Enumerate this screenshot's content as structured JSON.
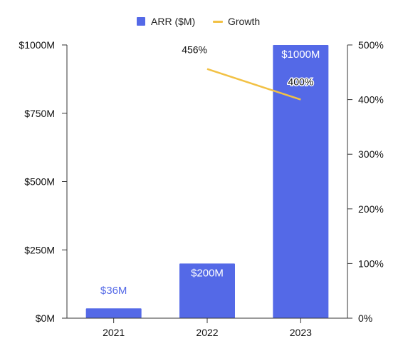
{
  "chart_data": {
    "type": "bar",
    "categories": [
      "2021",
      "2022",
      "2023"
    ],
    "series": [
      {
        "name": "ARR ($M)",
        "type": "bar",
        "axis": "left",
        "color": "#5469E7",
        "values": [
          36,
          200,
          1000
        ],
        "value_labels": [
          "$36M",
          "$200M",
          "$1000M"
        ]
      },
      {
        "name": "Growth",
        "type": "line",
        "axis": "right",
        "color": "#F2C144",
        "values": [
          null,
          456,
          400
        ],
        "value_labels": [
          "",
          "456%",
          "400%"
        ]
      }
    ],
    "y_left": {
      "ylim": [
        0,
        1000
      ],
      "ticks": [
        0,
        250,
        500,
        750,
        1000
      ],
      "tick_labels": [
        "$0M",
        "$250M",
        "$500M",
        "$750M",
        "$1000M"
      ]
    },
    "y_right": {
      "ylim": [
        0,
        500
      ],
      "ticks": [
        0,
        100,
        200,
        300,
        400,
        500
      ],
      "tick_labels": [
        "0%",
        "100%",
        "200%",
        "300%",
        "400%",
        "500%"
      ]
    },
    "legend": {
      "placement": "top",
      "items": [
        {
          "label": "ARR ($M)",
          "shape": "square",
          "color": "#5469E7"
        },
        {
          "label": "Growth",
          "shape": "line",
          "color": "#F2C144"
        }
      ]
    },
    "title": "",
    "xlabel": "",
    "ylabel": "",
    "grid": false,
    "label_colors": {
      "outside_bar": "#5469E7",
      "inside_bar": "#FFFFFF"
    }
  }
}
